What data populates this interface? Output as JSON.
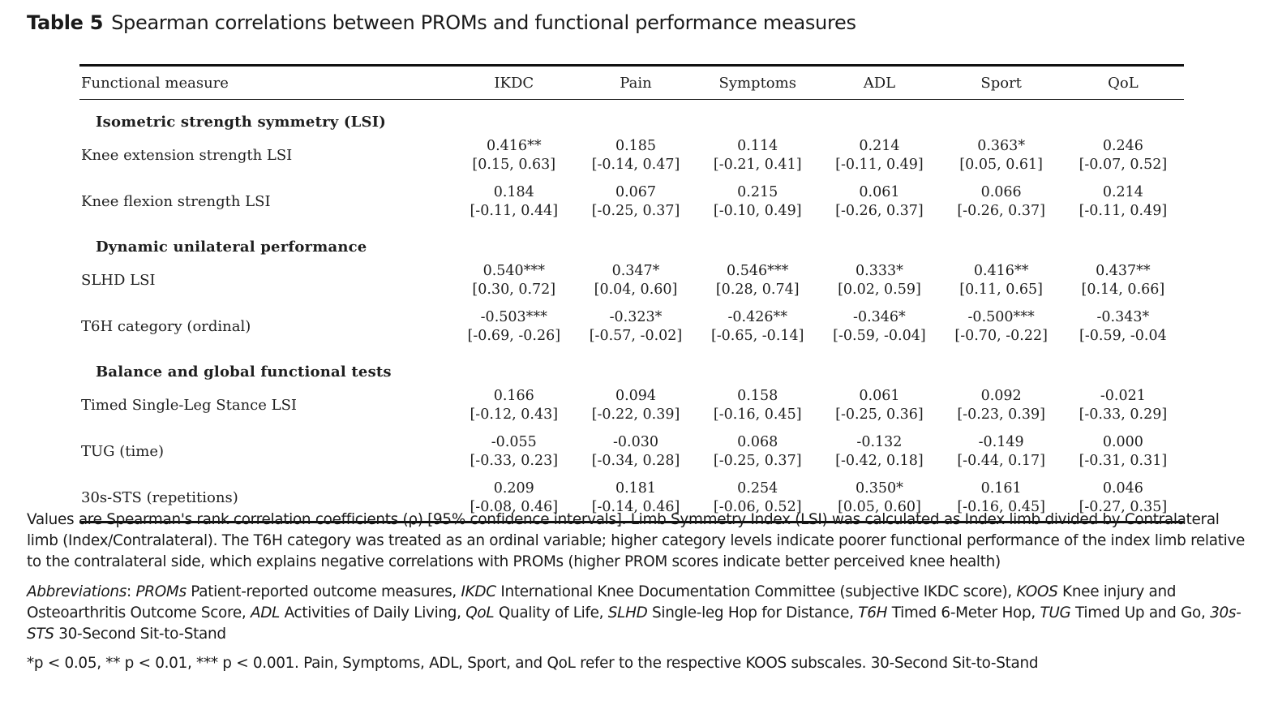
{
  "caption": {
    "label": "Table 5",
    "title": "Spearman correlations between PROMs and functional performance measures"
  },
  "table": {
    "headers": [
      "Functional measure",
      "IKDC",
      "Pain",
      "Symptoms",
      "ADL",
      "Sport",
      "QoL"
    ],
    "sections": [
      {
        "title": "Isometric strength symmetry (LSI)",
        "rows": [
          {
            "name": "Knee extension strength LSI",
            "cells": [
              [
                "0.416**",
                "[0.15, 0.63]"
              ],
              [
                "0.185",
                "[-0.14, 0.47]"
              ],
              [
                "0.114",
                "[-0.21, 0.41]"
              ],
              [
                "0.214",
                "[-0.11, 0.49]"
              ],
              [
                "0.363*",
                "[0.05, 0.61]"
              ],
              [
                "0.246",
                "[-0.07, 0.52]"
              ]
            ]
          },
          {
            "name": "Knee flexion strength LSI",
            "cells": [
              [
                "0.184",
                "[-0.11, 0.44]"
              ],
              [
                "0.067",
                "[-0.25, 0.37]"
              ],
              [
                "0.215",
                "[-0.10, 0.49]"
              ],
              [
                "0.061",
                "[-0.26, 0.37]"
              ],
              [
                "0.066",
                "[-0.26, 0.37]"
              ],
              [
                "0.214",
                "[-0.11, 0.49]"
              ]
            ]
          }
        ]
      },
      {
        "title": "Dynamic unilateral performance",
        "rows": [
          {
            "name": "SLHD LSI",
            "cells": [
              [
                "0.540***",
                "[0.30, 0.72]"
              ],
              [
                "0.347*",
                "[0.04, 0.60]"
              ],
              [
                "0.546***",
                "[0.28, 0.74]"
              ],
              [
                "0.333*",
                "[0.02, 0.59]"
              ],
              [
                "0.416**",
                "[0.11, 0.65]"
              ],
              [
                "0.437**",
                "[0.14, 0.66]"
              ]
            ]
          },
          {
            "name": "T6H category (ordinal)",
            "cells": [
              [
                "-0.503***",
                "[-0.69, -0.26]"
              ],
              [
                "-0.323*",
                "[-0.57, -0.02]"
              ],
              [
                "-0.426**",
                "[-0.65, -0.14]"
              ],
              [
                "-0.346*",
                "[-0.59, -0.04]"
              ],
              [
                "-0.500***",
                "[-0.70, -0.22]"
              ],
              [
                "-0.343*",
                "[-0.59, -0.04"
              ]
            ]
          }
        ]
      },
      {
        "title": "Balance and global functional tests",
        "rows": [
          {
            "name": "Timed Single-Leg Stance LSI",
            "cells": [
              [
                "0.166",
                "[-0.12, 0.43]"
              ],
              [
                "0.094",
                "[-0.22, 0.39]"
              ],
              [
                "0.158",
                "[-0.16, 0.45]"
              ],
              [
                "0.061",
                "[-0.25, 0.36]"
              ],
              [
                "0.092",
                "[-0.23, 0.39]"
              ],
              [
                "-0.021",
                "[-0.33, 0.29]"
              ]
            ]
          },
          {
            "name": "TUG (time)",
            "cells": [
              [
                "-0.055",
                "[-0.33, 0.23]"
              ],
              [
                "-0.030",
                "[-0.34, 0.28]"
              ],
              [
                "0.068",
                "[-0.25, 0.37]"
              ],
              [
                "-0.132",
                "[-0.42, 0.18]"
              ],
              [
                "-0.149",
                "[-0.44, 0.17]"
              ],
              [
                "0.000",
                "[-0.31, 0.31]"
              ]
            ]
          },
          {
            "name": "30s-STS (repetitions)",
            "cells": [
              [
                "0.209",
                "[-0.08, 0.46]"
              ],
              [
                "0.181",
                "[-0.14, 0.46]"
              ],
              [
                "0.254",
                "[-0.06, 0.52]"
              ],
              [
                "0.350*",
                "[0.05, 0.60]"
              ],
              [
                "0.161",
                "[-0.16, 0.45]"
              ],
              [
                "0.046",
                "[-0.27, 0.35]"
              ]
            ]
          }
        ]
      }
    ]
  },
  "notes": {
    "values": "Values are Spearman's rank correlation coefficients (ρ) [95% confidence intervals]. Limb Symmetry Index (LSI) was calculated as Index limb divided by Contralateral limb (Index/Contralateral). The T6H category was treated as an ordinal variable; higher category levels indicate poorer functional performance of the index limb relative to the contralateral side, which explains negative correlations with PROMs (higher PROM scores indicate better perceived knee health)",
    "abbreviations_label": "Abbreviations",
    "abbreviations": [
      {
        "abbr": "PROMs",
        "text": " Patient-reported outcome measures, "
      },
      {
        "abbr": "IKDC",
        "text": " International Knee Documentation Committee (subjective IKDC score), "
      },
      {
        "abbr": "KOOS",
        "text": " Knee injury and Osteoarthritis Outcome Score, "
      },
      {
        "abbr": "ADL",
        "text": " Activities of Daily Living, "
      },
      {
        "abbr": "QoL",
        "text": " Quality of Life, "
      },
      {
        "abbr": "SLHD",
        "text": " Single-leg Hop for Distance, "
      },
      {
        "abbr": "T6H",
        "text": " Timed 6-Meter Hop, "
      },
      {
        "abbr": "TUG",
        "text": " Timed Up and Go, "
      },
      {
        "abbr": "30s-STS",
        "text": " 30-Second Sit-to-Stand"
      }
    ],
    "significance": "*p < 0.05, ** p < 0.01, *** p < 0.001. Pain, Symptoms, ADL, Sport, and QoL refer to the respective KOOS subscales. 30-Second Sit-to-Stand"
  }
}
